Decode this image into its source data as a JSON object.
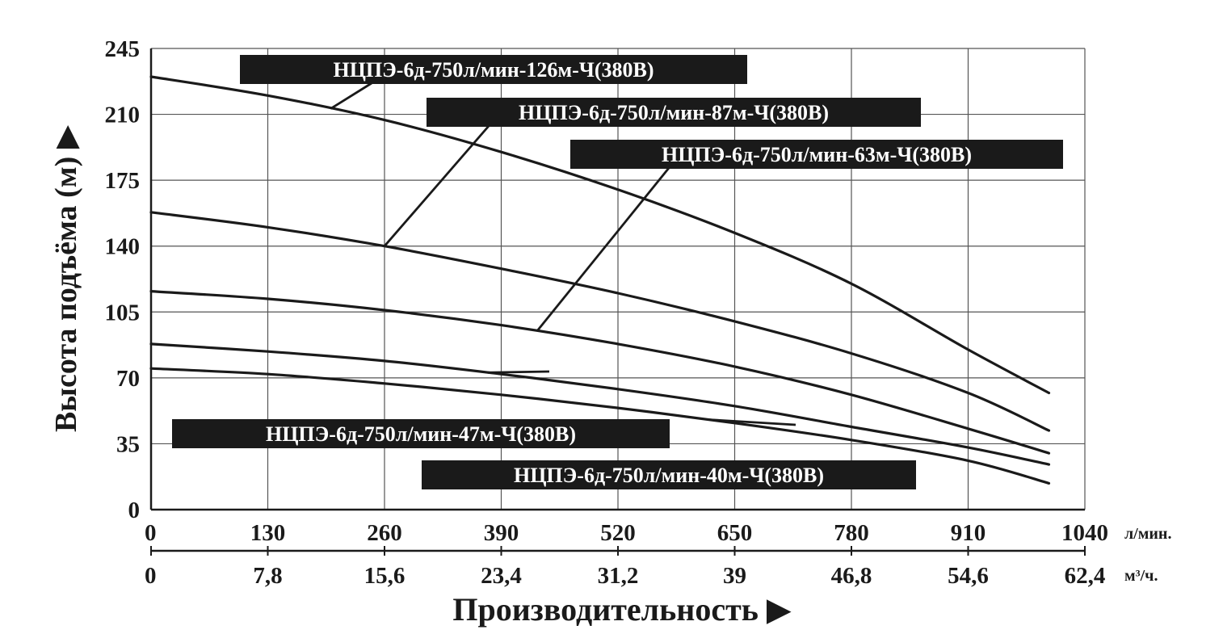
{
  "chart_data": {
    "type": "line",
    "title": "",
    "ylabel": "Высота подъёма (м) ▶",
    "xlabel": "Производительность ▶",
    "ylim": [
      0,
      245
    ],
    "xlim": [
      0,
      1040
    ],
    "grid": true,
    "y_ticks": [
      "0",
      "35",
      "70",
      "105",
      "140",
      "175",
      "210",
      "245"
    ],
    "x_ticks_primary": [
      "0",
      "130",
      "260",
      "390",
      "520",
      "650",
      "780",
      "910",
      "1040"
    ],
    "x_ticks_secondary": [
      "0",
      "7,8",
      "15,6",
      "23,4",
      "31,2",
      "39",
      "46,8",
      "54,6",
      "62,4"
    ],
    "x_unit_primary": "л/мин.",
    "x_unit_secondary": "м³/ч.",
    "x": [
      0,
      130,
      260,
      390,
      520,
      650,
      780,
      910,
      1000
    ],
    "series": [
      {
        "name": "НЦПЭ-6д-750л/мин-126м-Ч(380В)",
        "values": [
          230,
          220,
          207,
          190,
          170,
          147,
          120,
          85,
          62
        ]
      },
      {
        "name": "НЦПЭ-6д-750л/мин-87м-Ч(380В)",
        "values": [
          158,
          150,
          140,
          128,
          115,
          100,
          83,
          62,
          42
        ]
      },
      {
        "name": "НЦПЭ-6д-750л/мин-63м-Ч(380В)",
        "values": [
          116,
          112,
          106,
          98,
          88,
          76,
          61,
          43,
          30
        ]
      },
      {
        "name": "НЦПЭ-6д-750л/мин-47м-Ч(380В)",
        "values": [
          88,
          84,
          79,
          72,
          64,
          55,
          44,
          33,
          24
        ]
      },
      {
        "name": "НЦПЭ-6д-750л/мин-40м-Ч(380В)",
        "values": [
          75,
          72,
          67,
          61,
          54,
          46,
          37,
          26,
          14
        ]
      }
    ]
  }
}
